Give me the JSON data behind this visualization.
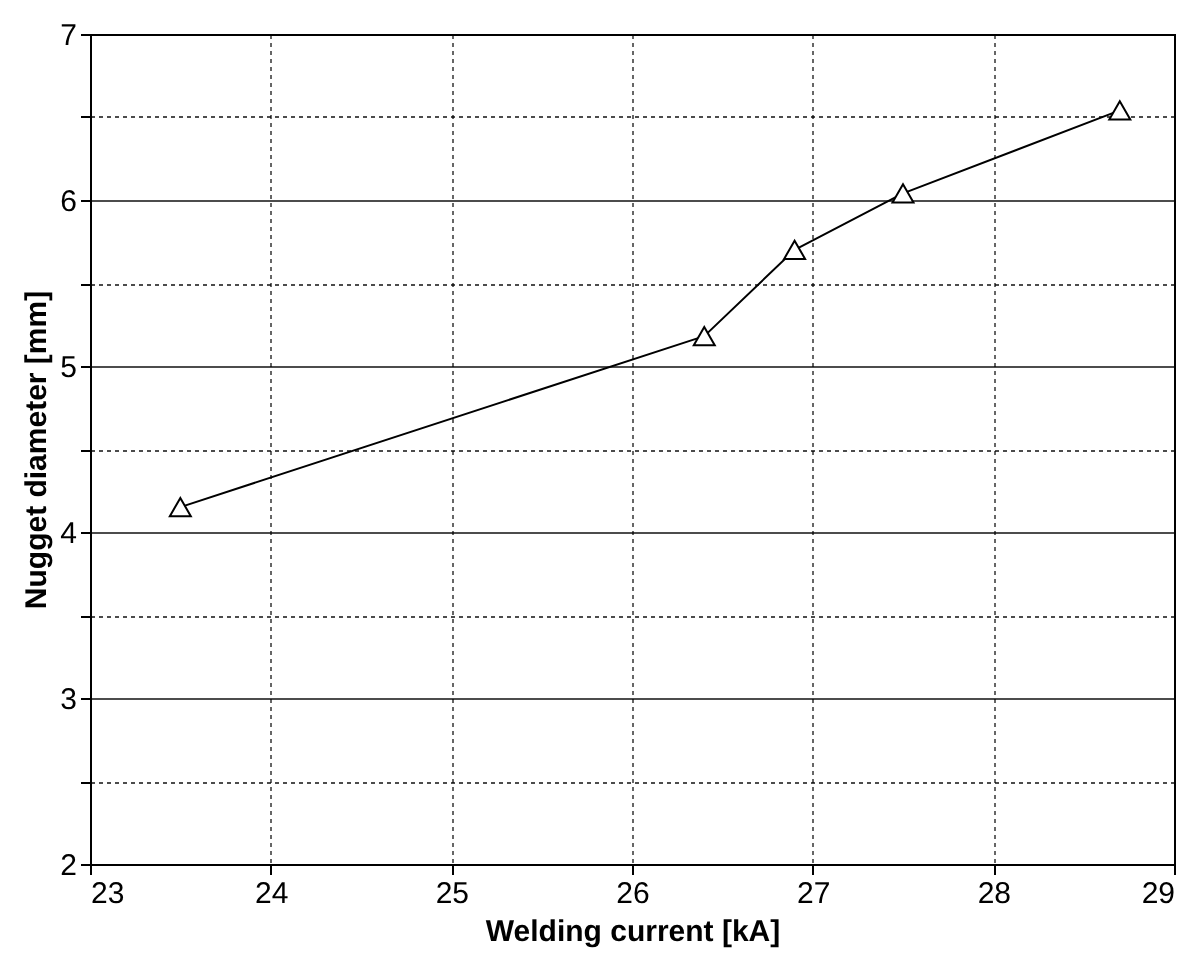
{
  "chart_data": {
    "type": "line",
    "xlabel": "Welding current [kA]",
    "ylabel": "Nugget diameter [mm]",
    "x": [
      23.5,
      26.4,
      26.9,
      27.5,
      28.7
    ],
    "series": [
      {
        "color": "#000000",
        "values": [
          4.15,
          5.18,
          5.7,
          6.04,
          6.54
        ]
      }
    ],
    "xlim": [
      23,
      29
    ],
    "xticks": [
      23,
      24,
      25,
      26,
      27,
      28,
      29
    ],
    "ylim": [
      2,
      7
    ],
    "yticks": [
      2,
      {
        "value": 2.5,
        "label": null
      },
      3,
      {
        "value": 3.5,
        "label": null
      },
      4,
      {
        "value": 4.5,
        "label": null
      },
      5,
      {
        "value": 5.5,
        "label": null
      },
      6,
      {
        "value": 6.5,
        "label": null
      },
      7
    ],
    "grid": true,
    "marker": "triangle",
    "line_style": "solid"
  }
}
